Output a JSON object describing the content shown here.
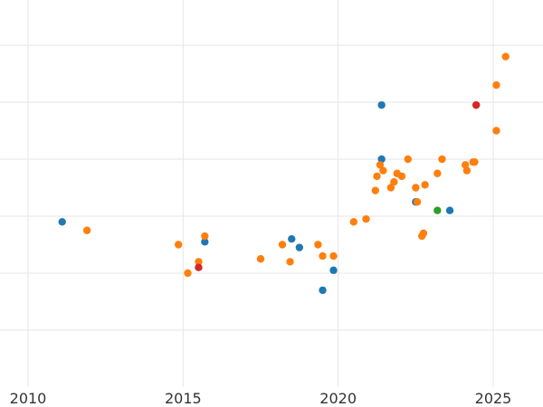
{
  "chart_data": {
    "type": "scatter",
    "title": "",
    "xlabel": "",
    "ylabel": "",
    "xlim": [
      2010,
      2026.6
    ],
    "ylim": [
      0,
      7
    ],
    "x_ticks": [
      2010,
      2015,
      2020,
      2025
    ],
    "y_ticks": [
      1,
      2,
      3,
      4,
      5,
      6
    ],
    "grid": true,
    "colors": {
      "blue": "#1f77b4",
      "orange": "#ff7f0e",
      "green": "#2ca02c",
      "red": "#d62728"
    },
    "series": [
      {
        "color_key": "blue",
        "points": [
          {
            "x": 2011.1,
            "y": 2.9
          },
          {
            "x": 2015.7,
            "y": 2.55
          },
          {
            "x": 2018.5,
            "y": 2.6
          },
          {
            "x": 2018.75,
            "y": 2.45
          },
          {
            "x": 2019.5,
            "y": 1.7
          },
          {
            "x": 2019.85,
            "y": 2.05
          },
          {
            "x": 2021.4,
            "y": 4.95
          },
          {
            "x": 2021.4,
            "y": 4.0
          },
          {
            "x": 2022.5,
            "y": 3.25
          },
          {
            "x": 2023.6,
            "y": 3.1
          }
        ]
      },
      {
        "color_key": "orange",
        "points": [
          {
            "x": 2011.9,
            "y": 2.75
          },
          {
            "x": 2014.85,
            "y": 2.5
          },
          {
            "x": 2015.15,
            "y": 2.0
          },
          {
            "x": 2015.5,
            "y": 2.2
          },
          {
            "x": 2015.7,
            "y": 2.65
          },
          {
            "x": 2017.5,
            "y": 2.25
          },
          {
            "x": 2018.2,
            "y": 2.5
          },
          {
            "x": 2018.45,
            "y": 2.2
          },
          {
            "x": 2019.35,
            "y": 2.5
          },
          {
            "x": 2019.5,
            "y": 2.3
          },
          {
            "x": 2019.85,
            "y": 2.3
          },
          {
            "x": 2020.5,
            "y": 2.9
          },
          {
            "x": 2020.9,
            "y": 2.95
          },
          {
            "x": 2021.2,
            "y": 3.45
          },
          {
            "x": 2021.25,
            "y": 3.7
          },
          {
            "x": 2021.35,
            "y": 3.9
          },
          {
            "x": 2021.45,
            "y": 3.8
          },
          {
            "x": 2021.7,
            "y": 3.5
          },
          {
            "x": 2021.8,
            "y": 3.6
          },
          {
            "x": 2021.9,
            "y": 3.75
          },
          {
            "x": 2022.05,
            "y": 3.7
          },
          {
            "x": 2022.25,
            "y": 4.0
          },
          {
            "x": 2022.5,
            "y": 3.5
          },
          {
            "x": 2022.55,
            "y": 3.25
          },
          {
            "x": 2022.7,
            "y": 2.65
          },
          {
            "x": 2022.75,
            "y": 2.7
          },
          {
            "x": 2022.8,
            "y": 3.55
          },
          {
            "x": 2023.2,
            "y": 3.75
          },
          {
            "x": 2023.35,
            "y": 4.0
          },
          {
            "x": 2024.1,
            "y": 3.9
          },
          {
            "x": 2024.15,
            "y": 3.8
          },
          {
            "x": 2024.35,
            "y": 3.95
          },
          {
            "x": 2024.4,
            "y": 3.95
          },
          {
            "x": 2024.45,
            "y": 4.95
          },
          {
            "x": 2025.1,
            "y": 4.5
          },
          {
            "x": 2025.1,
            "y": 5.3
          },
          {
            "x": 2025.4,
            "y": 5.8
          }
        ]
      },
      {
        "color_key": "green",
        "points": [
          {
            "x": 2023.2,
            "y": 3.1
          }
        ]
      },
      {
        "color_key": "red",
        "points": [
          {
            "x": 2015.5,
            "y": 2.1
          },
          {
            "x": 2024.45,
            "y": 4.95
          }
        ]
      }
    ]
  }
}
